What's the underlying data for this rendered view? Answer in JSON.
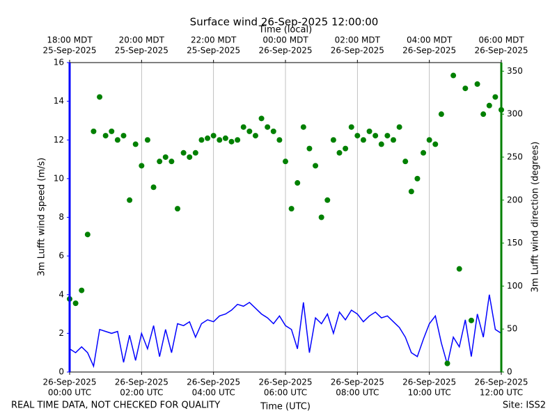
{
  "chart_data": {
    "type": "line",
    "title": "Surface wind 26-Sep-2025 12:00:00",
    "x_label": "Time (UTC)",
    "x2_label": "Time (local)",
    "y_label": "3m Lufft wind speed (m/s)",
    "y2_label": "3m Lufft wind direction (degrees)",
    "footer_left": "REAL TIME DATA, NOT CHECKED FOR QUALITY",
    "footer_right": "Site: ISS2",
    "grid": true,
    "xlim": [
      "2025-09-26 00:00",
      "2025-09-26 12:00"
    ],
    "xticks": [
      {
        "value": "2025-09-26 00:00",
        "label": [
          "26-Sep-2025",
          "00:00 UTC"
        ]
      },
      {
        "value": "2025-09-26 02:00",
        "label": [
          "26-Sep-2025",
          "02:00 UTC"
        ]
      },
      {
        "value": "2025-09-26 04:00",
        "label": [
          "26-Sep-2025",
          "04:00 UTC"
        ]
      },
      {
        "value": "2025-09-26 06:00",
        "label": [
          "26-Sep-2025",
          "06:00 UTC"
        ]
      },
      {
        "value": "2025-09-26 08:00",
        "label": [
          "26-Sep-2025",
          "08:00 UTC"
        ]
      },
      {
        "value": "2025-09-26 10:00",
        "label": [
          "26-Sep-2025",
          "10:00 UTC"
        ]
      },
      {
        "value": "2025-09-26 12:00",
        "label": [
          "26-Sep-2025",
          "12:00 UTC"
        ]
      }
    ],
    "x2ticks": [
      {
        "value": "2025-09-26 00:00",
        "label": [
          "18:00 MDT",
          "25-Sep-2025"
        ]
      },
      {
        "value": "2025-09-26 02:00",
        "label": [
          "20:00 MDT",
          "25-Sep-2025"
        ]
      },
      {
        "value": "2025-09-26 04:00",
        "label": [
          "22:00 MDT",
          "25-Sep-2025"
        ]
      },
      {
        "value": "2025-09-26 06:00",
        "label": [
          "00:00 MDT",
          "26-Sep-2025"
        ]
      },
      {
        "value": "2025-09-26 08:00",
        "label": [
          "02:00 MDT",
          "26-Sep-2025"
        ]
      },
      {
        "value": "2025-09-26 10:00",
        "label": [
          "04:00 MDT",
          "26-Sep-2025"
        ]
      },
      {
        "value": "2025-09-26 12:00",
        "label": [
          "06:00 MDT",
          "26-Sep-2025"
        ]
      }
    ],
    "ylim": [
      0,
      16
    ],
    "yticks": [
      0,
      2,
      4,
      6,
      8,
      10,
      12,
      14,
      16
    ],
    "y2lim": [
      0,
      360
    ],
    "y2ticks": [
      0,
      50,
      100,
      150,
      200,
      250,
      300,
      350
    ],
    "y_color": "#0000ff",
    "y2_color": "#008000",
    "x": [
      "2025-09-26 00:00",
      "2025-09-26 00:10",
      "2025-09-26 00:20",
      "2025-09-26 00:30",
      "2025-09-26 00:40",
      "2025-09-26 00:50",
      "2025-09-26 01:00",
      "2025-09-26 01:10",
      "2025-09-26 01:20",
      "2025-09-26 01:30",
      "2025-09-26 01:40",
      "2025-09-26 01:50",
      "2025-09-26 02:00",
      "2025-09-26 02:10",
      "2025-09-26 02:20",
      "2025-09-26 02:30",
      "2025-09-26 02:40",
      "2025-09-26 02:50",
      "2025-09-26 03:00",
      "2025-09-26 03:10",
      "2025-09-26 03:20",
      "2025-09-26 03:30",
      "2025-09-26 03:40",
      "2025-09-26 03:50",
      "2025-09-26 04:00",
      "2025-09-26 04:10",
      "2025-09-26 04:20",
      "2025-09-26 04:30",
      "2025-09-26 04:40",
      "2025-09-26 04:50",
      "2025-09-26 05:00",
      "2025-09-26 05:10",
      "2025-09-26 05:20",
      "2025-09-26 05:30",
      "2025-09-26 05:40",
      "2025-09-26 05:50",
      "2025-09-26 06:00",
      "2025-09-26 06:10",
      "2025-09-26 06:20",
      "2025-09-26 06:30",
      "2025-09-26 06:40",
      "2025-09-26 06:50",
      "2025-09-26 07:00",
      "2025-09-26 07:10",
      "2025-09-26 07:20",
      "2025-09-26 07:30",
      "2025-09-26 07:40",
      "2025-09-26 07:50",
      "2025-09-26 08:00",
      "2025-09-26 08:10",
      "2025-09-26 08:20",
      "2025-09-26 08:30",
      "2025-09-26 08:40",
      "2025-09-26 08:50",
      "2025-09-26 09:00",
      "2025-09-26 09:10",
      "2025-09-26 09:20",
      "2025-09-26 09:30",
      "2025-09-26 09:40",
      "2025-09-26 09:50",
      "2025-09-26 10:00",
      "2025-09-26 10:10",
      "2025-09-26 10:20",
      "2025-09-26 10:30",
      "2025-09-26 10:40",
      "2025-09-26 10:50",
      "2025-09-26 11:00",
      "2025-09-26 11:10",
      "2025-09-26 11:20",
      "2025-09-26 11:30",
      "2025-09-26 11:40",
      "2025-09-26 11:50",
      "2025-09-26 12:00"
    ],
    "series": [
      {
        "type": "line",
        "axis": "y",
        "color": "#0000ff",
        "values": [
          1.2,
          1.0,
          1.3,
          1.0,
          0.3,
          2.2,
          2.1,
          2.0,
          2.1,
          0.5,
          1.9,
          0.6,
          2.0,
          1.2,
          2.4,
          0.8,
          2.2,
          1.0,
          2.5,
          2.4,
          2.6,
          1.8,
          2.5,
          2.7,
          2.6,
          2.9,
          3.0,
          3.2,
          3.5,
          3.4,
          3.6,
          3.3,
          3.0,
          2.8,
          2.5,
          2.9,
          2.4,
          2.2,
          1.2,
          3.6,
          1.0,
          2.8,
          2.5,
          3.0,
          2.0,
          3.1,
          2.7,
          3.2,
          3.0,
          2.6,
          2.9,
          3.1,
          2.8,
          2.9,
          2.6,
          2.3,
          1.8,
          1.0,
          0.8,
          1.7,
          2.5,
          2.9,
          1.5,
          0.4,
          1.8,
          1.3,
          2.7,
          0.8,
          3.0,
          1.8,
          4.0,
          2.2,
          2.0
        ]
      },
      {
        "type": "scatter",
        "axis": "y2",
        "color": "#008000",
        "values": [
          85,
          80,
          95,
          160,
          280,
          320,
          275,
          280,
          270,
          275,
          200,
          265,
          240,
          270,
          215,
          245,
          250,
          245,
          190,
          255,
          250,
          255,
          270,
          272,
          275,
          270,
          272,
          268,
          270,
          285,
          280,
          275,
          295,
          285,
          280,
          270,
          245,
          190,
          220,
          285,
          260,
          240,
          180,
          200,
          270,
          255,
          260,
          285,
          275,
          270,
          280,
          275,
          265,
          275,
          270,
          285,
          245,
          210,
          225,
          255,
          270,
          265,
          300,
          10,
          345,
          120,
          330,
          60,
          335,
          300,
          310,
          320,
          305
        ]
      }
    ]
  }
}
